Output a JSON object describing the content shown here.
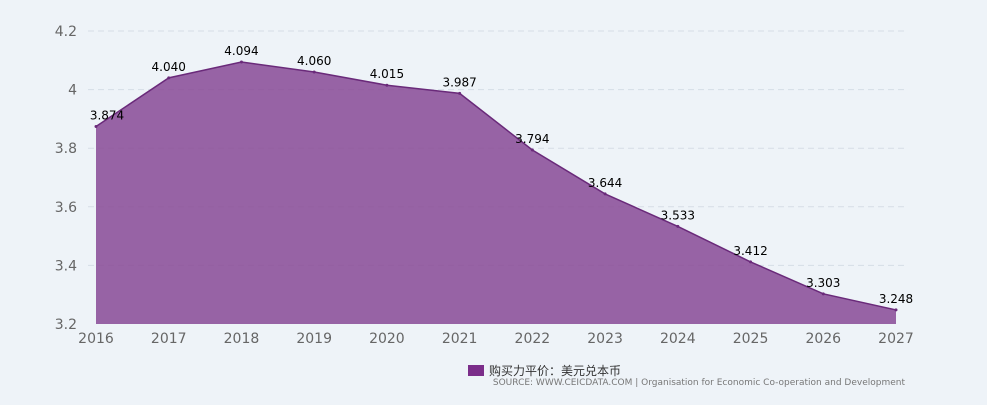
{
  "chart_data": {
    "type": "area",
    "title": "",
    "xlabel": "",
    "ylabel": "",
    "categories": [
      "2016",
      "2017",
      "2018",
      "2019",
      "2020",
      "2021",
      "2022",
      "2023",
      "2024",
      "2025",
      "2026",
      "2027"
    ],
    "series": [
      {
        "name": "购买力平价：美元兑本币",
        "values": [
          3.874,
          4.04,
          4.094,
          4.06,
          4.015,
          3.987,
          3.794,
          3.644,
          3.533,
          3.412,
          3.303,
          3.248
        ],
        "labels": [
          "3.874",
          "4.040",
          "4.094",
          "4.060",
          "4.015",
          "3.987",
          "3.794",
          "3.644",
          "3.533",
          "3.412",
          "3.303",
          "3.248"
        ]
      }
    ],
    "ylim": [
      3.2,
      4.2
    ],
    "yticks": [
      "3.2",
      "3.4",
      "3.6",
      "3.8",
      "4",
      "4.2"
    ],
    "grid": true,
    "legend_position": "bottom-center",
    "colors": {
      "fill": "#8b4f98",
      "line": "#6a2a7a",
      "legend": "#7b2d8a",
      "grid": "#d5dde6",
      "background": "#eef3f8"
    }
  },
  "legend": {
    "label": "购买力平价：美元兑本币"
  },
  "source": "SOURCE: WWW.CEICDATA.COM | Organisation for Economic Co-operation and Development"
}
